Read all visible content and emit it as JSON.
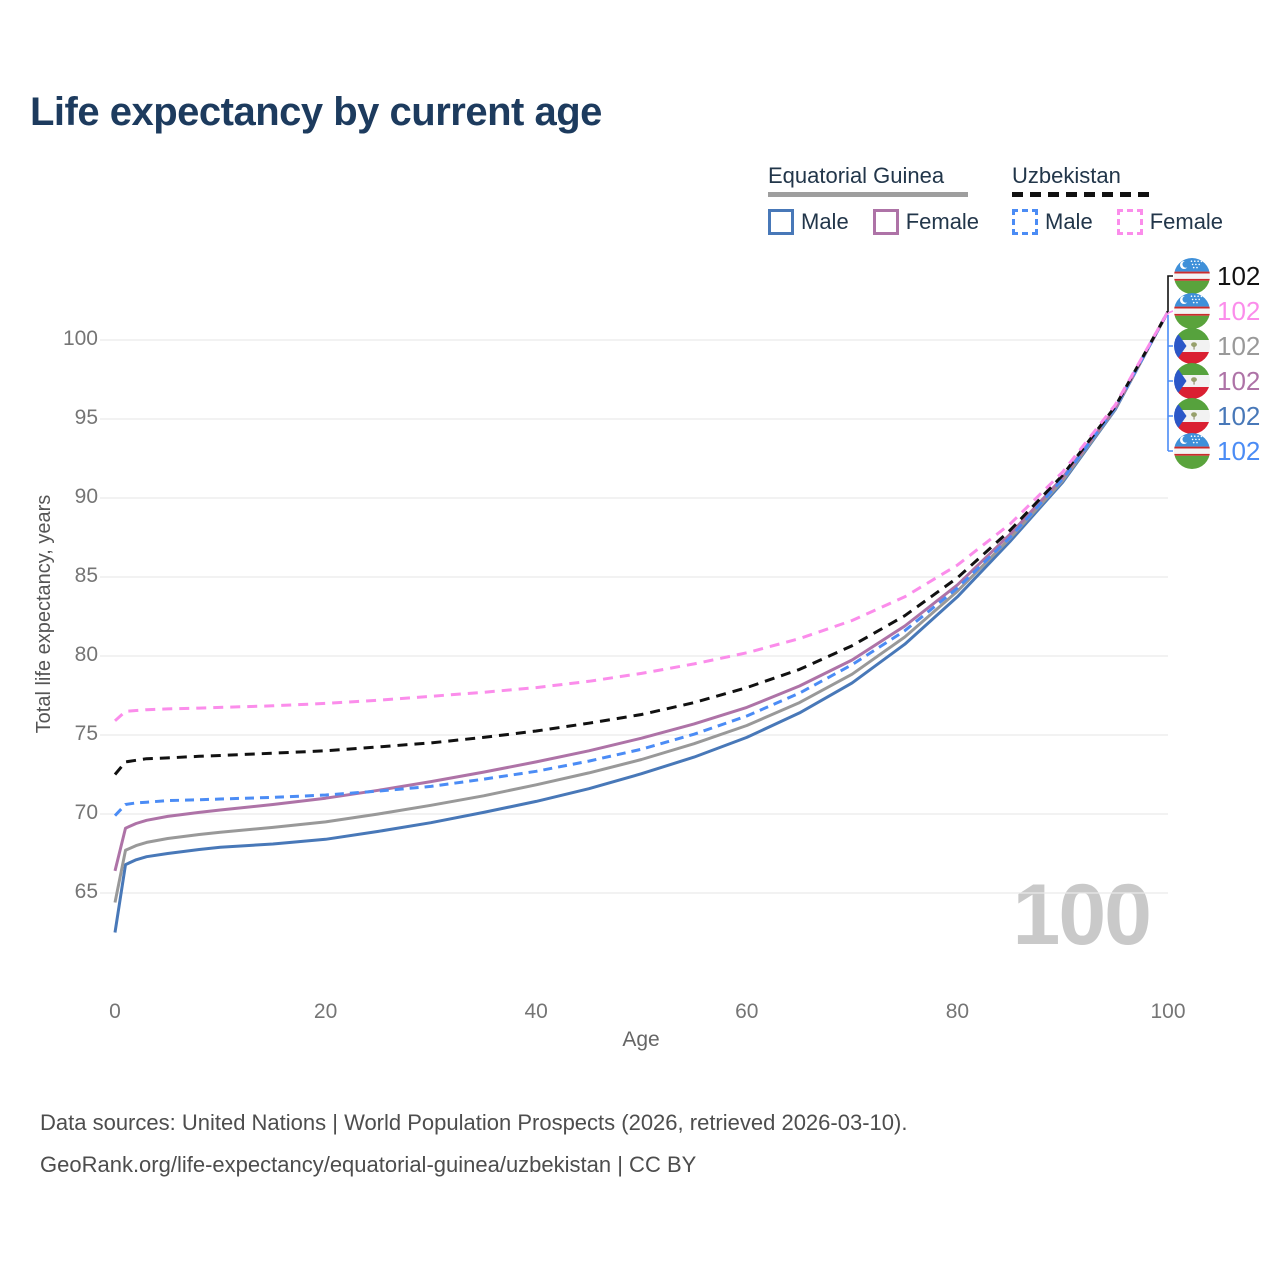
{
  "title": "Life expectancy by current age",
  "legend": {
    "groups": [
      {
        "country": "Equatorial Guinea",
        "line_style": "solid",
        "underline_color": "#9e9e9e",
        "items": [
          {
            "label": "Male",
            "color": "#4878b8"
          },
          {
            "label": "Female",
            "color": "#ae73a7"
          }
        ]
      },
      {
        "country": "Uzbekistan",
        "line_style": "dashed",
        "underline_color": "#111111",
        "items": [
          {
            "label": "Male",
            "color": "#4b8cf5"
          },
          {
            "label": "Female",
            "color": "#fb8deb"
          }
        ]
      }
    ]
  },
  "chart_data": {
    "type": "line",
    "title": "Life expectancy by current age",
    "xlabel": "Age",
    "ylabel": "Total life expectancy, years",
    "x_ticks": [
      0,
      20,
      40,
      60,
      80,
      100
    ],
    "y_ticks": [
      65,
      70,
      75,
      80,
      85,
      90,
      95,
      100
    ],
    "xlim": [
      0,
      100
    ],
    "ylim": [
      62,
      103
    ],
    "grid": "horizontal",
    "legend_position": "top-right",
    "ages": [
      0,
      1,
      2,
      3,
      5,
      8,
      10,
      15,
      20,
      25,
      30,
      35,
      40,
      45,
      50,
      55,
      60,
      65,
      70,
      75,
      80,
      85,
      90,
      95,
      100
    ],
    "series": [
      {
        "name": "Equatorial Guinea Male",
        "country": "Equatorial Guinea",
        "sex": "male",
        "color": "#4878b8",
        "dash": false,
        "dash_array": "",
        "values": [
          62.5,
          66.8,
          67.1,
          67.3,
          67.5,
          67.75,
          67.9,
          68.1,
          68.4,
          68.9,
          69.45,
          70.1,
          70.8,
          71.6,
          72.55,
          73.6,
          74.85,
          76.4,
          78.3,
          80.75,
          83.75,
          87.25,
          91.0,
          95.6,
          101.8
        ]
      },
      {
        "name": "Equatorial Guinea",
        "country": "Equatorial Guinea",
        "sex": "both",
        "color": "#999999",
        "dash": false,
        "dash_array": "",
        "values": [
          64.4,
          67.7,
          68.0,
          68.2,
          68.45,
          68.7,
          68.85,
          69.15,
          69.5,
          70.0,
          70.55,
          71.15,
          71.85,
          72.6,
          73.45,
          74.45,
          75.6,
          77.05,
          78.85,
          81.2,
          84.1,
          87.45,
          91.1,
          95.65,
          101.8
        ]
      },
      {
        "name": "Equatorial Guinea Female",
        "country": "Equatorial Guinea",
        "sex": "female",
        "color": "#ae73a7",
        "dash": false,
        "dash_array": "",
        "values": [
          66.4,
          69.1,
          69.4,
          69.6,
          69.85,
          70.1,
          70.25,
          70.6,
          71.0,
          71.5,
          72.05,
          72.65,
          73.3,
          74.0,
          74.8,
          75.7,
          76.75,
          78.1,
          79.75,
          81.9,
          84.5,
          87.7,
          91.3,
          95.7,
          101.8
        ]
      },
      {
        "name": "Uzbekistan Male",
        "country": "Uzbekistan",
        "sex": "male",
        "color": "#4b8cf5",
        "dash": true,
        "dash_array": "9 6",
        "values": [
          69.9,
          70.6,
          70.7,
          70.75,
          70.85,
          70.9,
          70.95,
          71.05,
          71.2,
          71.45,
          71.75,
          72.2,
          72.7,
          73.35,
          74.1,
          75.05,
          76.2,
          77.65,
          79.45,
          81.6,
          84.3,
          87.5,
          91.2,
          95.7,
          101.8
        ]
      },
      {
        "name": "Uzbekistan",
        "country": "Uzbekistan",
        "sex": "both",
        "color": "#111111",
        "dash": true,
        "dash_array": "10 7",
        "values": [
          72.5,
          73.3,
          73.4,
          73.5,
          73.55,
          73.65,
          73.7,
          73.85,
          74.0,
          74.25,
          74.5,
          74.85,
          75.25,
          75.75,
          76.3,
          77.05,
          78.0,
          79.15,
          80.65,
          82.55,
          84.95,
          87.95,
          91.45,
          95.8,
          101.8
        ]
      },
      {
        "name": "Uzbekistan Female",
        "country": "Uzbekistan",
        "sex": "female",
        "color": "#fb8deb",
        "dash": true,
        "dash_array": "10 7",
        "values": [
          75.9,
          76.5,
          76.55,
          76.6,
          76.65,
          76.7,
          76.75,
          76.85,
          77.0,
          77.2,
          77.45,
          77.7,
          78.0,
          78.4,
          78.9,
          79.5,
          80.2,
          81.1,
          82.25,
          83.75,
          85.75,
          88.35,
          91.65,
          95.9,
          101.8
        ]
      }
    ]
  },
  "endpoint": {
    "labels": [
      {
        "value": "102",
        "flag": "uz",
        "series": "Uzbekistan",
        "color": "#111111"
      },
      {
        "value": "102",
        "flag": "uz",
        "series": "Uzbekistan Female",
        "color": "#fb8deb"
      },
      {
        "value": "102",
        "flag": "gq",
        "series": "Equatorial Guinea",
        "color": "#999999"
      },
      {
        "value": "102",
        "flag": "gq",
        "series": "Equatorial Guinea Female",
        "color": "#ae73a7"
      },
      {
        "value": "102",
        "flag": "gq",
        "series": "Equatorial Guinea Male",
        "color": "#4878b8"
      },
      {
        "value": "102",
        "flag": "uz",
        "series": "Uzbekistan Male",
        "color": "#4b8cf5"
      }
    ],
    "connector_colors": {
      "top_bracket": "#111111",
      "mid_nub": "#fb8deb",
      "bottom_bracket": "#4b8cf5"
    }
  },
  "watermark": "100",
  "footer": {
    "line1": "Data sources: United Nations | World Population Prospects (2026, retrieved 2026-03-10).",
    "line2": "GeoRank.org/life-expectancy/equatorial-guinea/uzbekistan | CC BY"
  },
  "colors": {
    "title": "#1d3b5e",
    "gridline": "#e9e9e9",
    "tick_label": "#757575",
    "watermark": "#c9c9c9"
  }
}
